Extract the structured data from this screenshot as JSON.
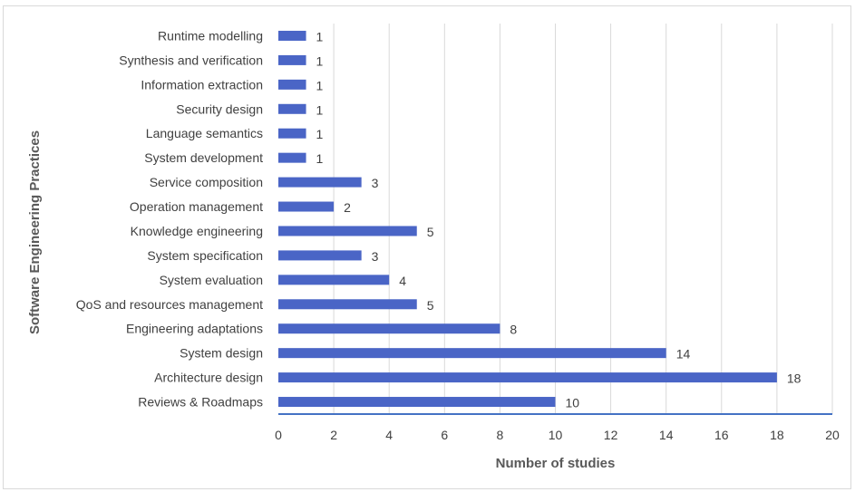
{
  "chart_data": {
    "type": "bar",
    "orientation": "horizontal",
    "categories": [
      "Runtime modelling",
      "Synthesis and verification",
      "Information extraction",
      "Security design",
      "Language semantics",
      "System development",
      "Service composition",
      "Operation management",
      "Knowledge engineering",
      "System specification",
      "System evaluation",
      "QoS and resources management",
      "Engineering adaptations",
      "System design",
      "Architecture design",
      "Reviews & Roadmaps"
    ],
    "values": [
      1,
      1,
      1,
      1,
      1,
      1,
      3,
      2,
      5,
      3,
      4,
      5,
      8,
      14,
      18,
      10
    ],
    "xlabel": "Number of studies",
    "ylabel": "Software Engineering Practices",
    "xlim": [
      0,
      20
    ],
    "xticks": [
      "0",
      "2",
      "4",
      "6",
      "8",
      "10",
      "12",
      "14",
      "16",
      "18",
      "20"
    ],
    "grid": true,
    "data_labels": true,
    "bar_color": "#4a65c6",
    "axis_color": "#4472c4",
    "grid_color": "#d9d9d9"
  }
}
